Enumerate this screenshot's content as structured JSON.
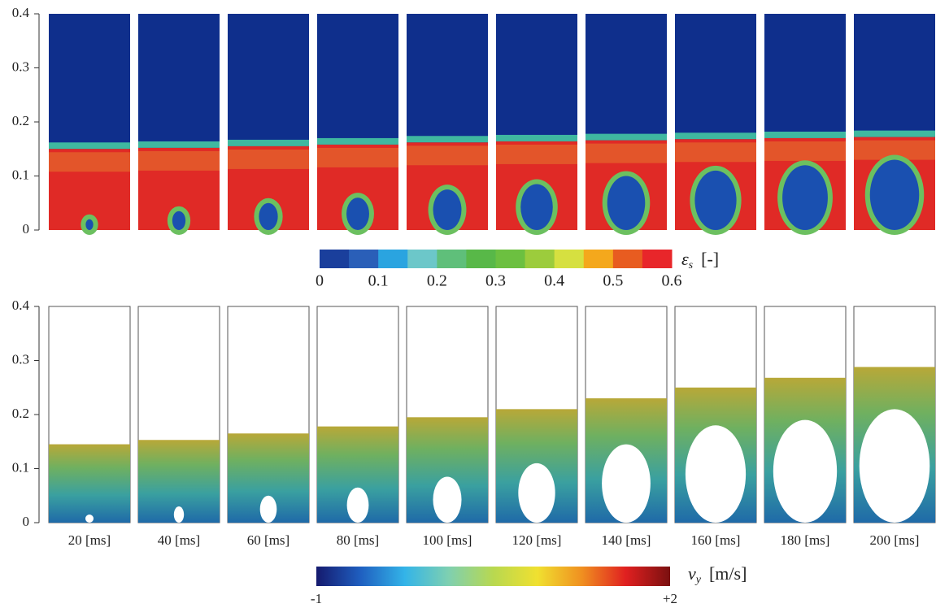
{
  "top_panel": {
    "ylim": [
      0,
      0.4
    ],
    "yticks": [
      0,
      0.1,
      0.2,
      0.3,
      0.4
    ],
    "interface_heights": [
      0.15,
      0.152,
      0.155,
      0.158,
      0.162,
      0.164,
      0.166,
      0.168,
      0.17,
      0.172
    ],
    "bubble_tops": [
      0.02,
      0.035,
      0.05,
      0.06,
      0.075,
      0.085,
      0.1,
      0.11,
      0.12,
      0.13
    ]
  },
  "colorbar_eps": {
    "symbol": "ε",
    "subscript": "s",
    "unit": "[-]",
    "ticks": [
      0,
      0.1,
      0.2,
      0.3,
      0.4,
      0.5,
      0.6
    ],
    "colors": [
      "#1a3f9c",
      "#2a5fb8",
      "#2aa4e0",
      "#6cc7c9",
      "#5fbf7a",
      "#58b848",
      "#6cc040",
      "#9ccc3c",
      "#d6e040",
      "#f4a81c",
      "#e85c20",
      "#e8262a"
    ]
  },
  "bottom_panel": {
    "ylim": [
      0,
      0.4
    ],
    "yticks": [
      0,
      0.1,
      0.2,
      0.3,
      0.4
    ],
    "bed_heights": [
      0.145,
      0.153,
      0.165,
      0.178,
      0.195,
      0.21,
      0.23,
      0.25,
      0.268,
      0.288
    ],
    "bubble_tops": [
      0.015,
      0.03,
      0.05,
      0.065,
      0.085,
      0.11,
      0.145,
      0.18,
      0.19,
      0.21
    ]
  },
  "time_labels": [
    "20 [ms]",
    "40 [ms]",
    "60 [ms]",
    "80 [ms]",
    "100 [ms]",
    "120 [ms]",
    "140 [ms]",
    "160 [ms]",
    "180 [ms]",
    "200 [ms]"
  ],
  "colorbar_vy": {
    "symbol": "v",
    "subscript": "y",
    "unit": "[m/s]",
    "ticks": [
      -1,
      {
        "value": 2,
        "label": "+2"
      }
    ],
    "colors": [
      "#151a6e",
      "#1f5fc0",
      "#33b4e8",
      "#7fd0b0",
      "#b8d850",
      "#f0e030",
      "#f09020",
      "#e02020",
      "#7a1010"
    ]
  }
}
